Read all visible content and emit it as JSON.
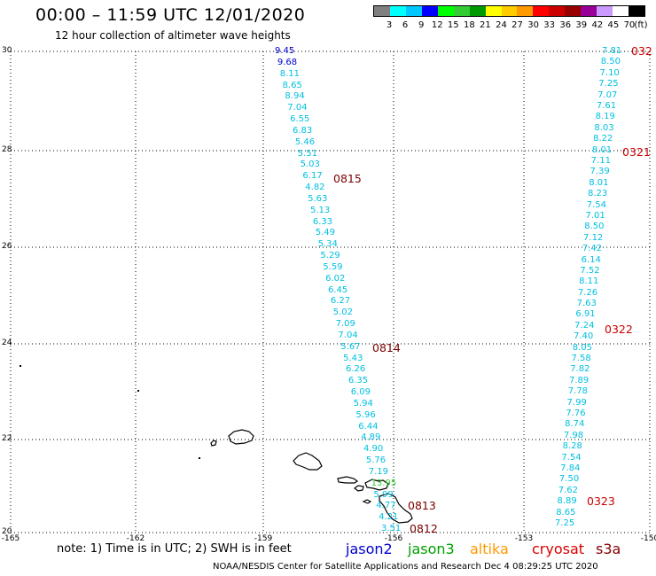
{
  "title": "00:00 – 11:59 UTC 12/01/2020",
  "subtitle": "12 hour collection of altimeter wave heights",
  "colorbar": {
    "labels": [
      "3",
      "6",
      "9",
      "12",
      "15",
      "18",
      "21",
      "24",
      "27",
      "30",
      "33",
      "36",
      "39",
      "42",
      "45",
      "70",
      "(ft)"
    ],
    "colors": [
      "#808080",
      "#00ffff",
      "#00c8ff",
      "#0000ff",
      "#00ff00",
      "#33cc33",
      "#009900",
      "#ffff00",
      "#ffcc00",
      "#ff9900",
      "#ff0000",
      "#cc0000",
      "#990000",
      "#990099",
      "#cc99ff",
      "#ffffff",
      "#000000"
    ]
  },
  "axes": {
    "lat_ticks": [
      "30",
      "28",
      "26",
      "24",
      "22",
      "20"
    ],
    "lon_ticks": [
      "-165",
      "-162",
      "-159",
      "-156",
      "-153",
      "-150"
    ]
  },
  "track_left": {
    "values": [
      "9.45",
      "9.68",
      "8.11",
      "8.65",
      "8.94",
      "7.04",
      "6.55",
      "6.83",
      "5.46",
      "5.51",
      "5.03",
      "6.17",
      "4.82",
      "5.63",
      "5.13",
      "6.33",
      "5.49",
      "5.34",
      "5.29",
      "5.59",
      "6.02",
      "6.45",
      "6.27",
      "5.02",
      "7.09",
      "7.04",
      "5.67",
      "5.43",
      "6.26",
      "6.35",
      "6.09",
      "5.94",
      "5.96",
      "6.44",
      "4.89",
      "4.90",
      "5.76",
      "7.19",
      "13.95",
      "5.99",
      "4.77",
      "4.21",
      "3.51"
    ],
    "labels": [
      "0815",
      "0814",
      "0813",
      "0812"
    ]
  },
  "track_right": {
    "values": [
      "7.81",
      "8.50",
      "7.10",
      "7.25",
      "7.07",
      "7.61",
      "8.19",
      "8.03",
      "8.22",
      "8.01",
      "7.11",
      "7.39",
      "8.01",
      "8.23",
      "7.54",
      "7.01",
      "8.50",
      "7.12",
      "7.42",
      "6.14",
      "7.52",
      "8.11",
      "7.26",
      "7.63",
      "6.91",
      "7.24",
      "7.40",
      "8.05",
      "7.58",
      "7.82",
      "7.89",
      "7.78",
      "7.99",
      "7.76",
      "8.74",
      "7.98",
      "8.28",
      "7.54",
      "7.84",
      "7.50",
      "7.62",
      "8.89",
      "8.65",
      "7.25"
    ],
    "labels": [
      "032",
      "0321",
      "0322",
      "0323"
    ]
  },
  "note": "note:  1) Time is in UTC;  2) SWH is in feet",
  "satellites": [
    {
      "name": "jason2",
      "color": "#0000cc"
    },
    {
      "name": "jason3",
      "color": "#00a000"
    },
    {
      "name": "altika",
      "color": "#ff9900"
    },
    {
      "name": "cryosat",
      "color": "#dd0000"
    },
    {
      "name": "s3a",
      "color": "#880000"
    }
  ],
  "credit": "NOAA/NESDIS Center for Satellite Applications and Research    Dec  4 08:29:25 UTC 2020"
}
